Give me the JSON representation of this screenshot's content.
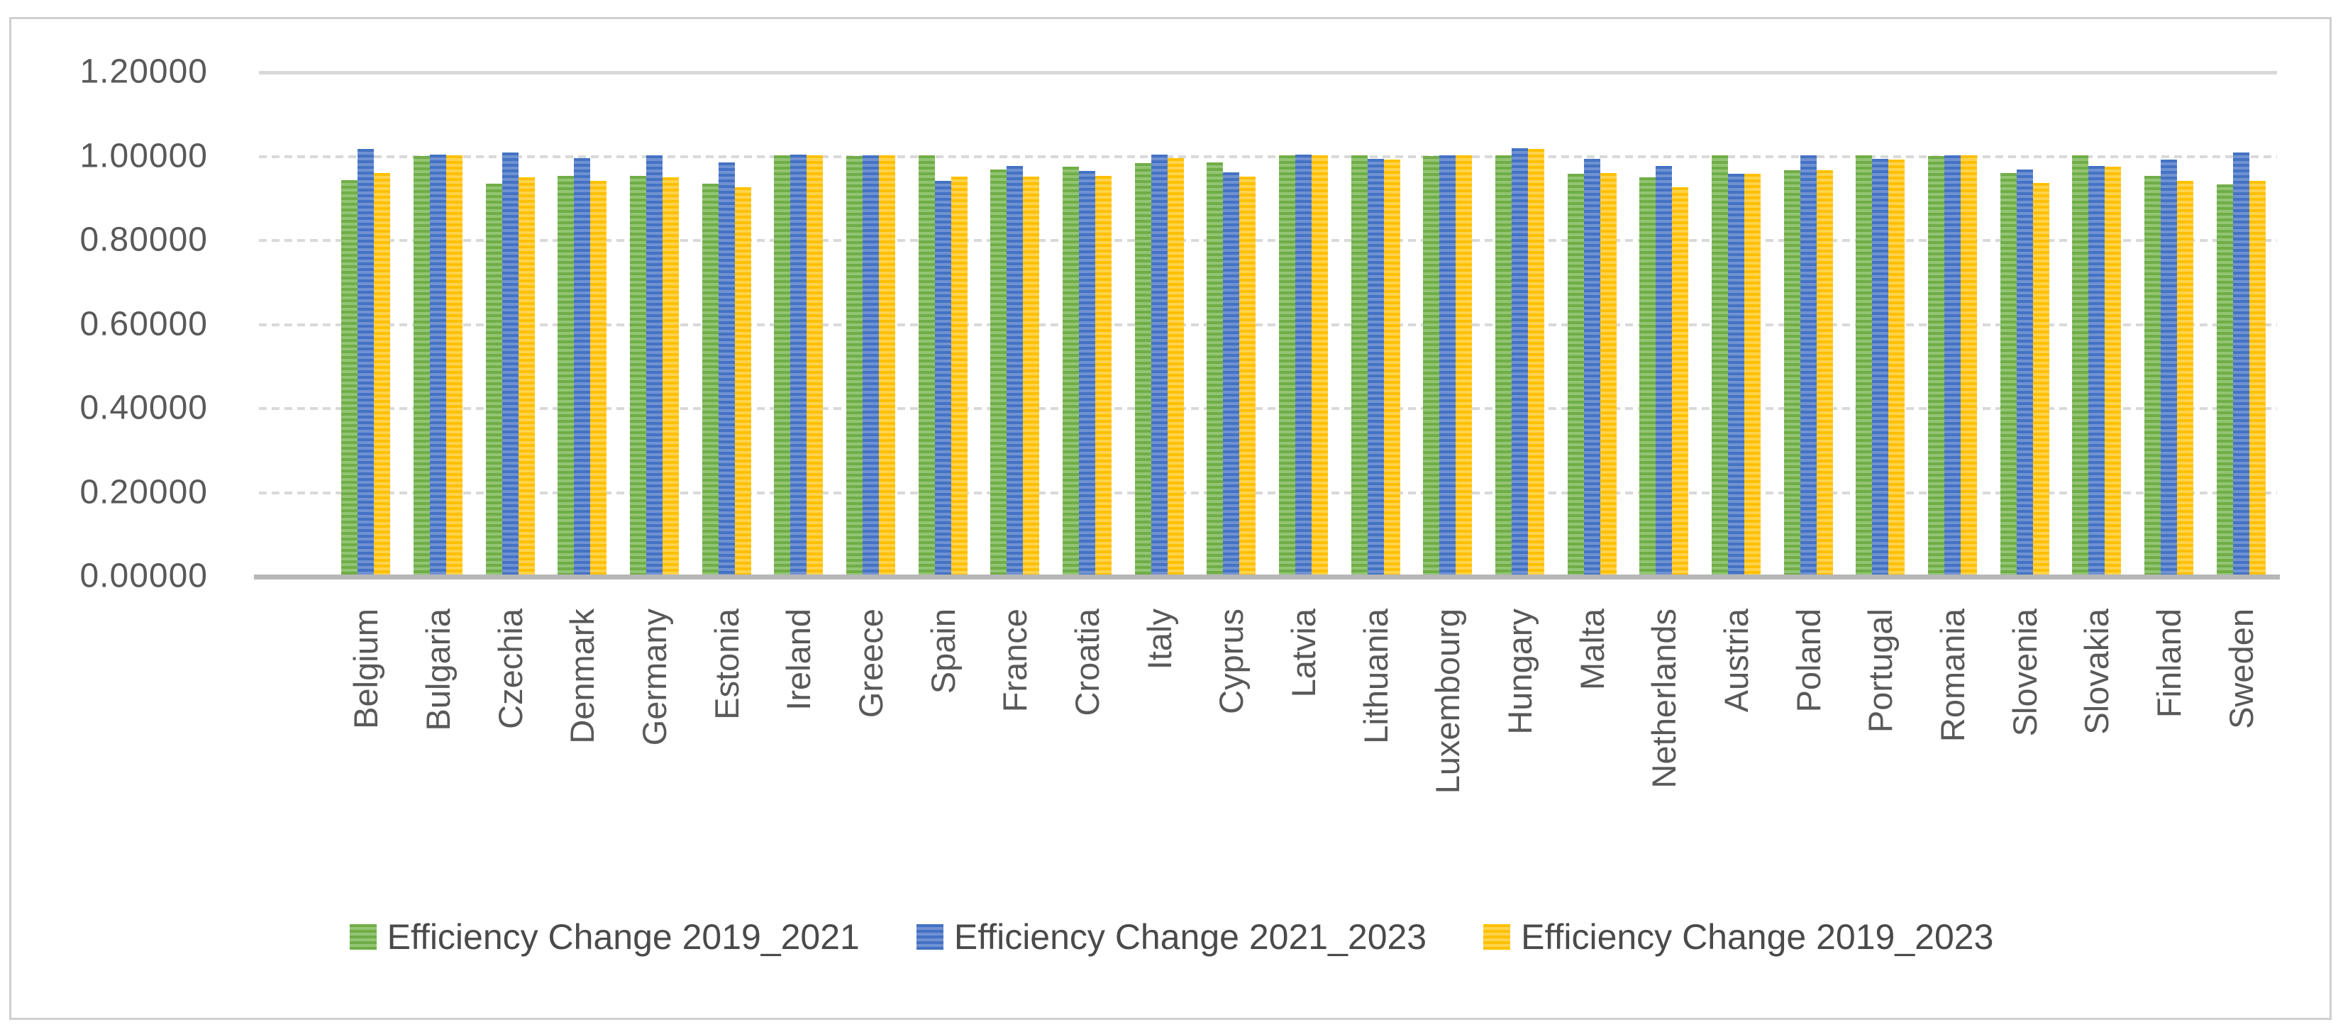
{
  "chart_data": {
    "type": "bar",
    "title": "",
    "categories": [
      "Belgium",
      "Bulgaria",
      "Czechia",
      "Denmark",
      "Germany",
      "Estonia",
      "Ireland",
      "Greece",
      "Spain",
      "France",
      "Croatia",
      "Italy",
      "Cyprus",
      "Latvia",
      "Lithuania",
      "Luxembourg",
      "Hungary",
      "Malta",
      "Netherlands",
      "Austria",
      "Poland",
      "Portugal",
      "Romania",
      "Slovenia",
      "Slovakia",
      "Finland",
      "Sweden"
    ],
    "series": [
      {
        "name": "Efficiency Change 2019_2021",
        "color": "#70AD47",
        "color_light": "#92C573",
        "values": [
          0.943,
          1.001,
          0.935,
          0.953,
          0.953,
          0.935,
          1.002,
          1.001,
          1.003,
          0.969,
          0.976,
          0.984,
          0.986,
          1.002,
          1.003,
          1.001,
          1.003,
          0.959,
          0.95,
          1.003,
          0.967,
          1.002,
          1.001,
          0.96,
          1.003,
          0.954,
          0.933
        ]
      },
      {
        "name": "Efficiency Change 2021_2023",
        "color": "#4472C4",
        "color_light": "#7092D2",
        "values": [
          1.018,
          1.004,
          1.01,
          0.995,
          1.002,
          0.986,
          1.004,
          1.003,
          0.942,
          0.977,
          0.966,
          1.004,
          0.962,
          1.004,
          0.994,
          1.003,
          1.019,
          0.994,
          0.977,
          0.959,
          1.002,
          0.994,
          1.003,
          0.968,
          0.977,
          0.992,
          1.009
        ]
      },
      {
        "name": "Efficiency Change 2019_2023",
        "color": "#FFC000",
        "color_light": "#FFD34D",
        "values": [
          0.961,
          1.002,
          0.951,
          0.942,
          0.951,
          0.926,
          1.002,
          1.002,
          0.952,
          0.952,
          0.953,
          0.996,
          0.952,
          1.002,
          0.993,
          1.002,
          1.018,
          0.96,
          0.926,
          0.959,
          0.967,
          0.992,
          1.002,
          0.936,
          0.976,
          0.942,
          0.942
        ]
      }
    ],
    "y_axis": {
      "min": 0,
      "max": 1.2,
      "step": 0.2,
      "tick_labels": [
        "1.20000",
        "1.00000",
        "0.80000",
        "0.60000",
        "0.40000",
        "0.20000",
        "0.00000"
      ]
    },
    "grid": true,
    "legend_position": "bottom",
    "bar_pattern": "horizontal-stripes"
  },
  "style_colors": {
    "grid": "#D9D9D9",
    "axis_line": "#B7B7B7",
    "tick_text": "#595959",
    "legend_text": "#4A4A4A",
    "frame_border": "#CFCFCF",
    "background": "#FFFFFF"
  }
}
